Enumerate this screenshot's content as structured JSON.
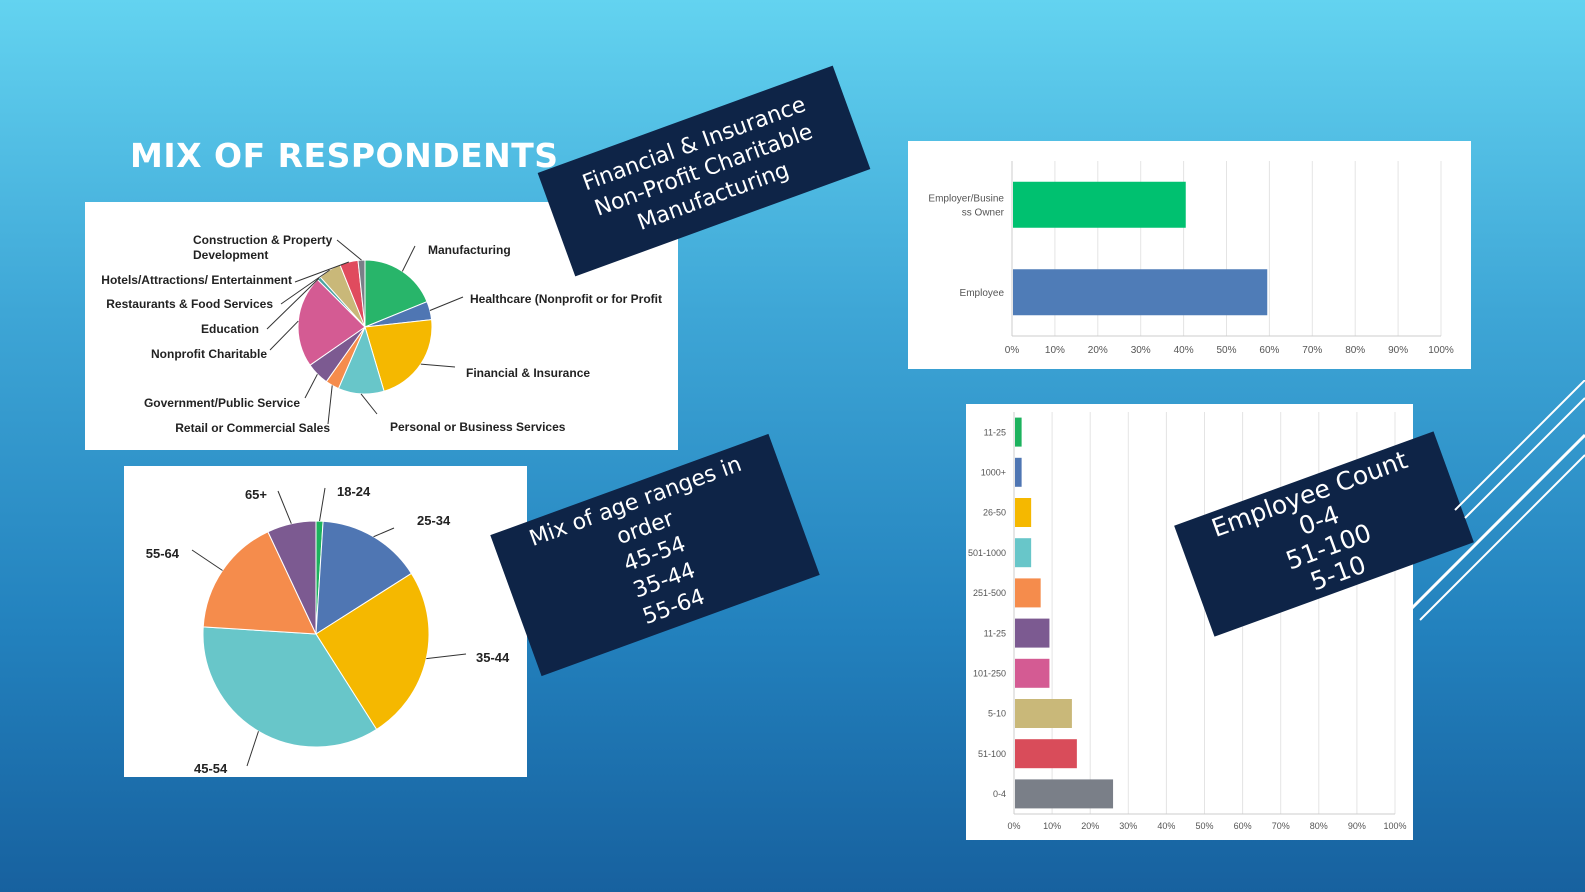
{
  "slide": {
    "title": "MIX OF RESPONDENTS",
    "callouts": {
      "industry": [
        "Financial & Insurance",
        "Non-Profit Charitable",
        "Manufacturing"
      ],
      "age": [
        "Mix of age ranges in",
        "order",
        "45-54",
        "35-44",
        "55-64"
      ],
      "employee": [
        "Employee Count",
        "0-4",
        "51-100",
        "5-10"
      ]
    }
  },
  "chart_data": [
    {
      "type": "pie",
      "slices": [
        {
          "label": "Manufacturing",
          "value": 17,
          "color": "#28b56a"
        },
        {
          "label": "Healthcare (Nonprofit or for Profit",
          "value": 4,
          "color": "#4f76b3"
        },
        {
          "label": "Financial & Insurance",
          "value": 20,
          "color": "#f5b800"
        },
        {
          "label": "Personal or Business Services",
          "value": 10,
          "color": "#68c6c9"
        },
        {
          "label": "Retail or Commercial Sales",
          "value": 3,
          "color": "#f58c4c"
        },
        {
          "label": "Government/Public Service",
          "value": 5,
          "color": "#7c5a91"
        },
        {
          "label": "Nonprofit Charitable",
          "value": 20,
          "color": "#d45b93"
        },
        {
          "label": "Education",
          "value": 0.8,
          "color": "#4aa3a3"
        },
        {
          "label": "Restaurants & Food Services",
          "value": 5,
          "color": "#c9b879"
        },
        {
          "label": "Hotels/Attractions/ Entertainment",
          "value": 4,
          "color": "#e04b5e"
        },
        {
          "label": "Construction & Property Development",
          "value": 1.5,
          "color": "#7a7f88"
        }
      ]
    },
    {
      "type": "pie",
      "slices": [
        {
          "label": "18-24",
          "value": 1,
          "color": "#1db25e"
        },
        {
          "label": "25-34",
          "value": 15,
          "color": "#4f76b3"
        },
        {
          "label": "35-44",
          "value": 25,
          "color": "#f5b800"
        },
        {
          "label": "45-54",
          "value": 35,
          "color": "#68c6c9"
        },
        {
          "label": "55-64",
          "value": 17,
          "color": "#f58c4c"
        },
        {
          "label": "65+",
          "value": 7,
          "color": "#7c5a91"
        }
      ]
    },
    {
      "type": "bar",
      "orientation": "horizontal",
      "categories": [
        "Employer/Business Owner",
        "Employee"
      ],
      "values": [
        40.5,
        59.5
      ],
      "colors": [
        "#00c170",
        "#4f7cb7"
      ],
      "xlim": [
        0,
        100
      ],
      "ticks": [
        "0%",
        "10%",
        "20%",
        "30%",
        "40%",
        "50%",
        "60%",
        "70%",
        "80%",
        "90%",
        "100%"
      ],
      "grid": true
    },
    {
      "type": "bar",
      "orientation": "horizontal",
      "categories": [
        "11-25",
        "1000+",
        "26-50",
        "501-1000",
        "251-500",
        "11-25",
        "101-250",
        "5-10",
        "51-100",
        "0-4"
      ],
      "values": [
        2,
        2,
        4.5,
        4.5,
        7,
        9.3,
        9.3,
        15.2,
        16.5,
        26
      ],
      "colors": [
        "#1db25e",
        "#4f76b3",
        "#f5b800",
        "#68c6c9",
        "#f58c4c",
        "#7c5a91",
        "#d45b93",
        "#c9b879",
        "#d94c5a",
        "#7a7f88"
      ],
      "xlim": [
        0,
        100
      ],
      "ticks": [
        "0%",
        "10%",
        "20%",
        "30%",
        "40%",
        "50%",
        "60%",
        "70%",
        "80%",
        "90%",
        "100%"
      ],
      "grid": true
    }
  ]
}
